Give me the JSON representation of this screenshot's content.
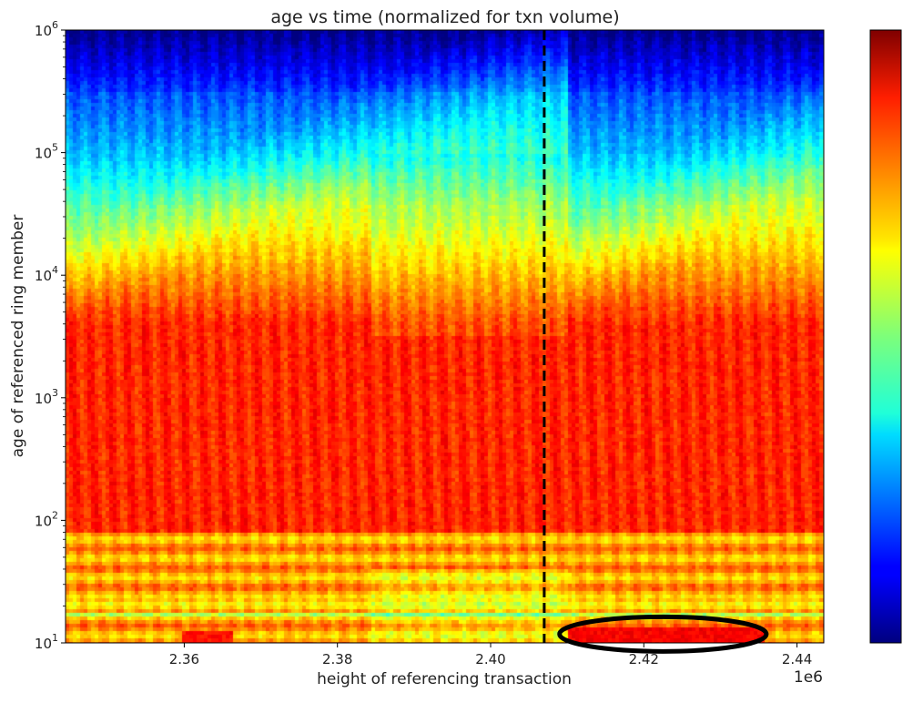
{
  "chart_data": {
    "type": "heatmap",
    "title": "age vs time (normalized for txn volume)",
    "xlabel": "height of referencing transaction",
    "ylabel": "age of referenced ring member",
    "x_offset_label": "1e6",
    "xlim": [
      2.3445,
      2.4435
    ],
    "ylim": [
      10,
      1000000
    ],
    "yscale": "log",
    "x_ticks": [
      2.36,
      2.38,
      2.4,
      2.42,
      2.44
    ],
    "x_tick_labels": [
      "2.36",
      "2.38",
      "2.40",
      "2.42",
      "2.44"
    ],
    "y_ticks": [
      10,
      100,
      1000,
      10000,
      100000,
      1000000
    ],
    "y_tick_labels": [
      {
        "base": "10",
        "exp": "1"
      },
      {
        "base": "10",
        "exp": "2"
      },
      {
        "base": "10",
        "exp": "3"
      },
      {
        "base": "10",
        "exp": "4"
      },
      {
        "base": "10",
        "exp": "5"
      },
      {
        "base": "10",
        "exp": "6"
      }
    ],
    "colormap": "jet",
    "colorbar": true,
    "colorbar_tick_labels": [],
    "grid": false,
    "annotations": [
      {
        "type": "vline",
        "x": 2.407,
        "style": "dashed",
        "color": "#000000"
      },
      {
        "type": "ellipse",
        "cx": 2.4225,
        "cy": 11.8,
        "x_half_width": 0.0135,
        "color": "#000000"
      },
      {
        "type": "regime-change",
        "x": 2.3843
      },
      {
        "type": "regime-change",
        "x": 2.41
      }
    ]
  }
}
